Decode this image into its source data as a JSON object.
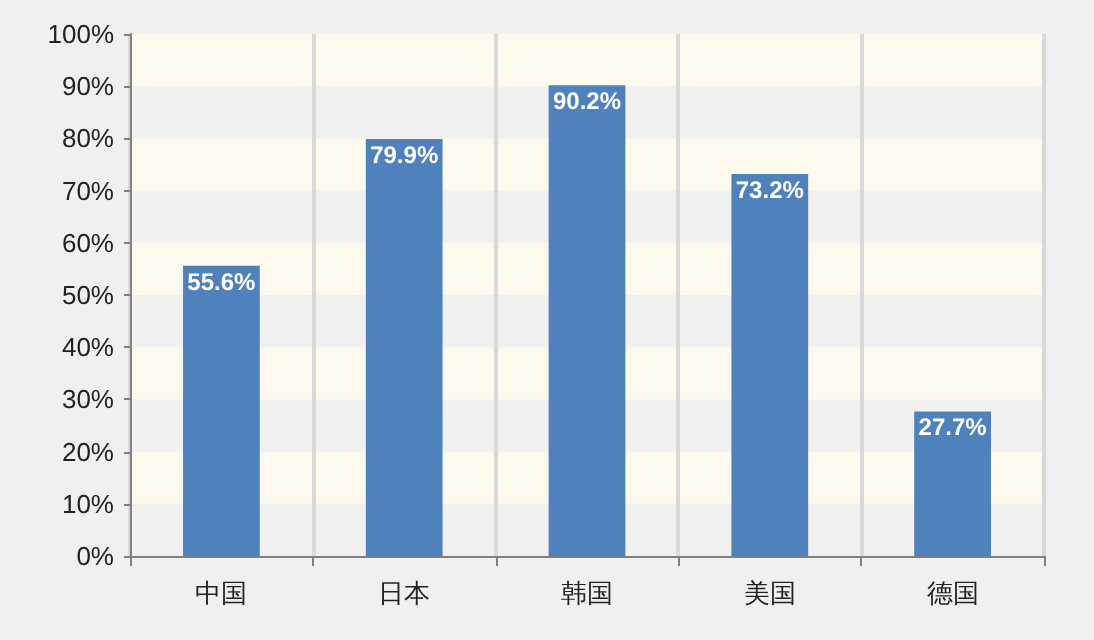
{
  "chart_data": {
    "type": "bar",
    "categories": [
      "中国",
      "日本",
      "韩国",
      "美国",
      "德国"
    ],
    "values": [
      55.6,
      79.9,
      90.2,
      73.2,
      27.7
    ],
    "value_labels": [
      "55.6%",
      "79.9%",
      "90.2%",
      "73.2%",
      "27.7%"
    ],
    "color": "#4f81bd",
    "ylim": [
      0,
      100
    ],
    "yticks": [
      {
        "value": 0,
        "label": "0%"
      },
      {
        "value": 10,
        "label": "10%"
      },
      {
        "value": 20,
        "label": "20%"
      },
      {
        "value": 30,
        "label": "30%"
      },
      {
        "value": 40,
        "label": "40%"
      },
      {
        "value": 50,
        "label": "50%"
      },
      {
        "value": 60,
        "label": "60%"
      },
      {
        "value": 70,
        "label": "70%"
      },
      {
        "value": 80,
        "label": "80%"
      },
      {
        "value": 90,
        "label": "90%"
      },
      {
        "value": 100,
        "label": "100%"
      }
    ],
    "grid": "x",
    "bands": [
      {
        "axis": "y",
        "from": 10,
        "to": 20,
        "color": "#fdf9ec"
      },
      {
        "axis": "y",
        "from": 30,
        "to": 40,
        "color": "#fdf9ec"
      },
      {
        "axis": "y",
        "from": 50,
        "to": 60,
        "color": "#fdf9ec"
      },
      {
        "axis": "y",
        "from": 70,
        "to": 80,
        "color": "#fdf9ec"
      },
      {
        "axis": "y",
        "from": 90,
        "to": 100,
        "color": "#fdf9ec"
      }
    ]
  }
}
